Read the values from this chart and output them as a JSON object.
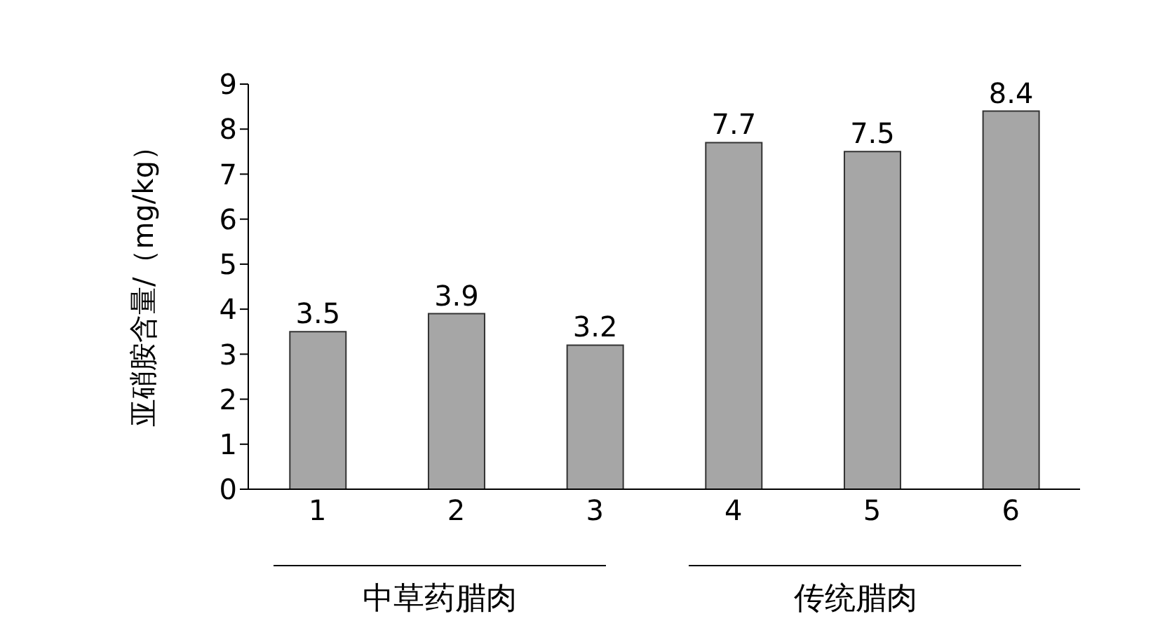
{
  "chart_data": {
    "type": "bar",
    "ylabel": "亚硝胺含量/（mg/kg）",
    "categories": [
      "1",
      "2",
      "3",
      "4",
      "5",
      "6"
    ],
    "values": [
      3.5,
      3.9,
      3.2,
      7.7,
      7.5,
      8.4
    ],
    "color": "#a6a6a6",
    "ylim": [
      0,
      9
    ],
    "yticks": [
      0,
      1,
      2,
      3,
      4,
      5,
      6,
      7,
      8,
      9
    ],
    "data_labels": true,
    "grid": false,
    "annotations": [
      "中草药腊肉",
      "传统腊肉"
    ]
  }
}
